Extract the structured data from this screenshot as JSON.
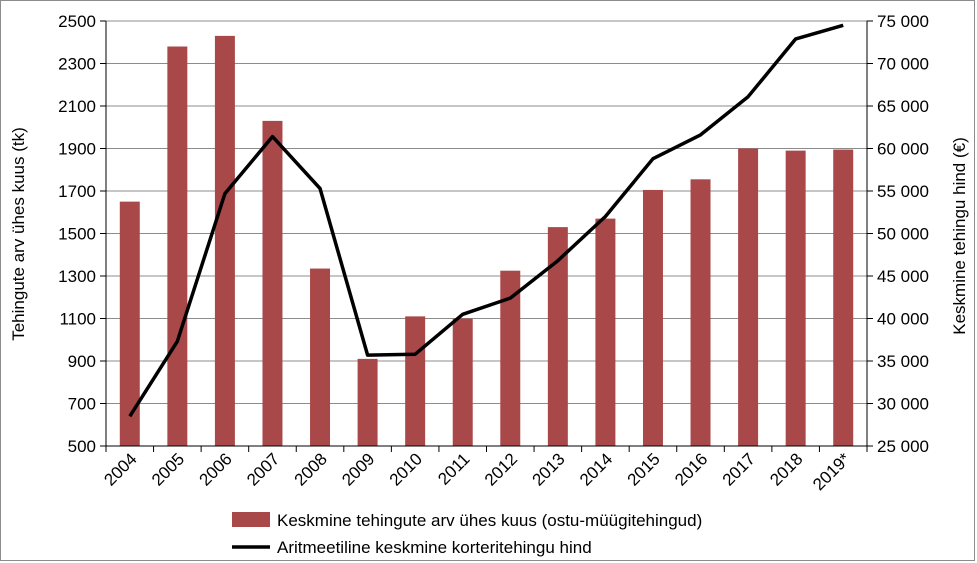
{
  "chart_data": {
    "type": "bar+line",
    "categories": [
      "2004",
      "2005",
      "2006",
      "2007",
      "2008",
      "2009",
      "2010",
      "2011",
      "2012",
      "2013",
      "2014",
      "2015",
      "2016",
      "2017",
      "2018",
      "2019*"
    ],
    "series": [
      {
        "name": "Keskmine tehingute arv ühes kuus (ostu-müügitehingud)",
        "type": "bar",
        "axis": "left",
        "color": "#a84848",
        "values": [
          1650,
          2380,
          2430,
          2030,
          1335,
          910,
          1110,
          1100,
          1325,
          1530,
          1570,
          1705,
          1755,
          1900,
          1890,
          1895
        ]
      },
      {
        "name": "Aritmeetiline keskmine korteritehingu hind",
        "type": "line",
        "axis": "right",
        "color": "#000000",
        "values": [
          28500,
          37300,
          54700,
          61400,
          55300,
          35700,
          35800,
          40500,
          42400,
          46800,
          52000,
          58800,
          61600,
          66100,
          72900,
          74500
        ]
      }
    ],
    "y_left": {
      "label": "Tehingute arv ühes kuus (tk)",
      "range": [
        500,
        2500
      ],
      "ticks": [
        "500",
        "700",
        "900",
        "1100",
        "1300",
        "1500",
        "1700",
        "1900",
        "2100",
        "2300",
        "2500"
      ]
    },
    "y_right": {
      "label": "Keskmine tehingu hind (€)",
      "range": [
        25000,
        75000
      ],
      "ticks": [
        "25 000",
        "30 000",
        "35 000",
        "40 000",
        "45 000",
        "50 000",
        "55 000",
        "60 000",
        "65 000",
        "70 000",
        "75 000"
      ]
    },
    "grid": true,
    "legend": "bottom"
  }
}
